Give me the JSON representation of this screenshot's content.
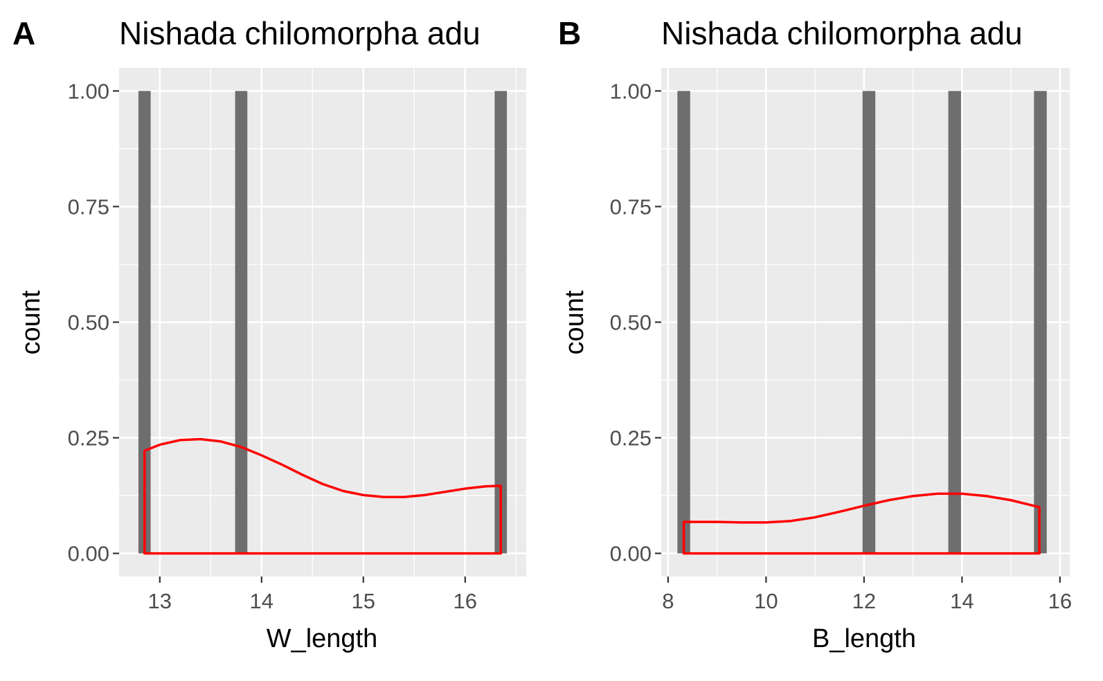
{
  "chart_data": [
    {
      "type": "bar",
      "tag": "A",
      "title": "Nishada chilomorpha adu",
      "xlabel": "W_length",
      "ylabel": "count",
      "xlim": [
        12.6,
        16.6
      ],
      "ylim": [
        -0.05,
        1.05
      ],
      "xticks": [
        13,
        14,
        15,
        16
      ],
      "yticks": [
        0.0,
        0.25,
        0.5,
        0.75,
        1.0
      ],
      "ytick_labels": [
        "0.00",
        "0.25",
        "0.50",
        "0.75",
        "1.00"
      ],
      "bar_width": 0.12,
      "bars": [
        {
          "x": 12.85,
          "count": 1
        },
        {
          "x": 13.8,
          "count": 1
        },
        {
          "x": 16.35,
          "count": 1
        }
      ],
      "density": {
        "x": [
          12.85,
          13.0,
          13.2,
          13.4,
          13.6,
          13.8,
          14.0,
          14.2,
          14.4,
          14.6,
          14.8,
          15.0,
          15.2,
          15.4,
          15.6,
          15.8,
          16.0,
          16.2,
          16.35
        ],
        "y": [
          0.222,
          0.235,
          0.245,
          0.247,
          0.242,
          0.23,
          0.212,
          0.192,
          0.17,
          0.15,
          0.135,
          0.126,
          0.122,
          0.122,
          0.126,
          0.133,
          0.14,
          0.145,
          0.146
        ]
      },
      "colors": {
        "bar": "#6e6e6e",
        "density": "#ff0000",
        "panel": "#ebebeb"
      }
    },
    {
      "type": "bar",
      "tag": "B",
      "title": "Nishada chilomorpha adu",
      "xlabel": "B_length",
      "ylabel": "count",
      "xlim": [
        7.86,
        16.2
      ],
      "ylim": [
        -0.05,
        1.05
      ],
      "xticks": [
        8,
        10,
        12,
        14,
        16
      ],
      "yticks": [
        0.0,
        0.25,
        0.5,
        0.75,
        1.0
      ],
      "ytick_labels": [
        "0.00",
        "0.25",
        "0.50",
        "0.75",
        "1.00"
      ],
      "bar_width": 0.26,
      "bars": [
        {
          "x": 8.32,
          "count": 1
        },
        {
          "x": 12.1,
          "count": 1
        },
        {
          "x": 13.85,
          "count": 1
        },
        {
          "x": 15.6,
          "count": 1
        }
      ],
      "density": {
        "x": [
          8.32,
          9.0,
          9.5,
          10.0,
          10.5,
          11.0,
          11.5,
          12.0,
          12.5,
          13.0,
          13.5,
          14.0,
          14.5,
          15.0,
          15.58
        ],
        "y": [
          0.068,
          0.068,
          0.067,
          0.067,
          0.07,
          0.078,
          0.09,
          0.103,
          0.115,
          0.124,
          0.129,
          0.129,
          0.124,
          0.115,
          0.1
        ]
      },
      "colors": {
        "bar": "#6e6e6e",
        "density": "#ff0000",
        "panel": "#ebebeb"
      }
    }
  ]
}
